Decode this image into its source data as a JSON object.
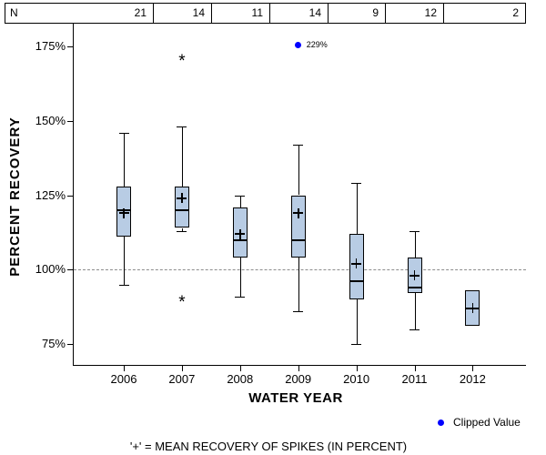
{
  "n_table": {
    "label": "N",
    "counts": [
      "21",
      "14",
      "11",
      "14",
      "9",
      "12",
      "2"
    ]
  },
  "chart_data": {
    "type": "boxplot",
    "title": "",
    "xlabel": "WATER YEAR",
    "ylabel": "PERCENT RECOVERY",
    "categories": [
      "2006",
      "2007",
      "2008",
      "2009",
      "2010",
      "2011",
      "2012"
    ],
    "n_per_category": [
      21,
      14,
      11,
      14,
      9,
      12,
      2
    ],
    "y_ticks": [
      {
        "value": 175,
        "label": "175%"
      },
      {
        "value": 150,
        "label": "150%"
      },
      {
        "value": 125,
        "label": "125%"
      },
      {
        "value": 100,
        "label": "100%"
      },
      {
        "value": 75,
        "label": "75%"
      }
    ],
    "y_axis_range_percent": [
      68,
      180
    ],
    "reference_line_percent": 100,
    "grid": "dashed-reference-only",
    "legend_position": "bottom-right",
    "boxes": [
      {
        "year": "2006",
        "n": 21,
        "whisker_low": 95,
        "q1": 111,
        "median": 120,
        "mean": 119,
        "q3": 128,
        "whisker_high": 146,
        "outliers": []
      },
      {
        "year": "2007",
        "n": 14,
        "whisker_low": 113,
        "q1": 114,
        "median": 120,
        "mean": 124,
        "q3": 128,
        "whisker_high": 148,
        "outliers": [
          170,
          89
        ]
      },
      {
        "year": "2008",
        "n": 11,
        "whisker_low": 91,
        "q1": 104,
        "median": 110,
        "mean": 112,
        "q3": 121,
        "whisker_high": 125,
        "outliers": []
      },
      {
        "year": "2009",
        "n": 14,
        "whisker_low": 86,
        "q1": 104,
        "median": 110,
        "mean": 119,
        "q3": 125,
        "whisker_high": 142,
        "outliers": [],
        "clipped_value_label": "229%"
      },
      {
        "year": "2010",
        "n": 9,
        "whisker_low": 75,
        "q1": 90,
        "median": 96,
        "mean": 102,
        "q3": 112,
        "whisker_high": 129,
        "outliers": []
      },
      {
        "year": "2011",
        "n": 12,
        "whisker_low": 80,
        "q1": 92,
        "median": 94,
        "mean": 98,
        "q3": 104,
        "whisker_high": 113,
        "outliers": []
      },
      {
        "year": "2012",
        "n": 2,
        "whisker_low": null,
        "q1": 81,
        "median": 87,
        "mean": 87,
        "q3": 93,
        "whisker_high": null,
        "outliers": []
      }
    ],
    "legend": {
      "marker": "blue-dot",
      "label": "Clipped Value"
    },
    "caption": "'+' = MEAN RECOVERY OF SPIKES (IN PERCENT)"
  },
  "colors": {
    "box_fill": "#b8cce4",
    "box_border": "#000000",
    "clipped_dot": "#0000ff",
    "reference_line": "#8c8c8c",
    "text": "#000000",
    "background": "#ffffff"
  }
}
